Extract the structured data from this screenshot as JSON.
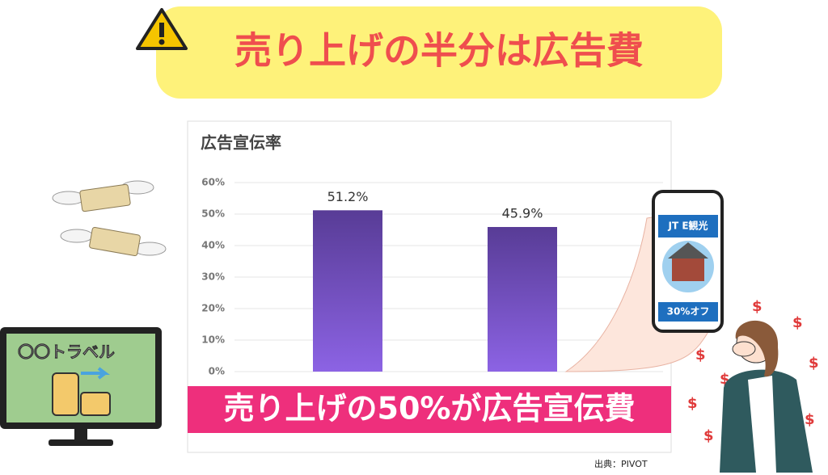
{
  "header": {
    "title": "売り上げの半分は広告費"
  },
  "chart_data": {
    "type": "bar",
    "title": "広告宣伝率",
    "categories": [
      null,
      null
    ],
    "values": [
      51.2,
      45.9
    ],
    "value_labels": [
      "51.2%",
      "45.9%"
    ],
    "color": "#6a4bbf",
    "ylim": [
      0,
      60
    ],
    "yticks": [
      {
        "value": 0,
        "label": "0%"
      },
      {
        "value": 10,
        "label": "10%"
      },
      {
        "value": 20,
        "label": "20%"
      },
      {
        "value": 30,
        "label": "30%"
      },
      {
        "value": 40,
        "label": "40%"
      },
      {
        "value": 50,
        "label": "50%"
      },
      {
        "value": 60,
        "label": "60%"
      }
    ],
    "grid": true
  },
  "banner": {
    "text": "売り上げの50%が広告宣伝費"
  },
  "source": "出典：PIVOT",
  "tv": {
    "label": "〇〇トラベル"
  },
  "phone": {
    "brand": "JT E観光",
    "offer": "30%オフ"
  }
}
